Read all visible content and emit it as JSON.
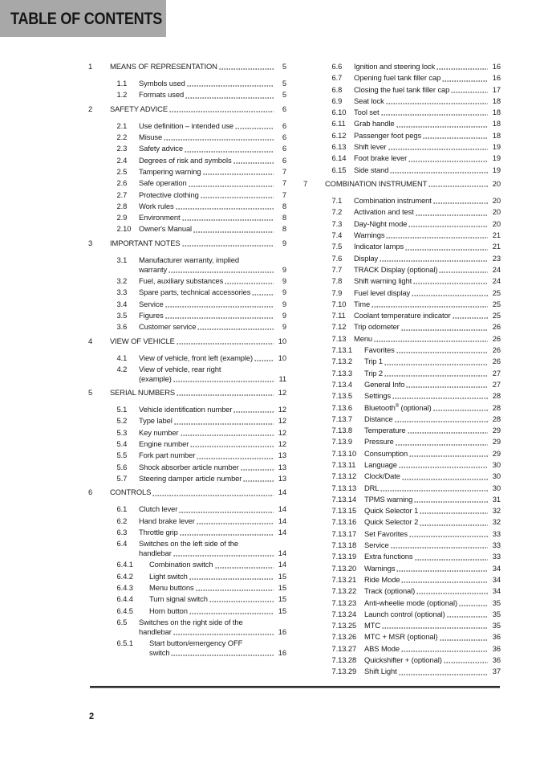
{
  "header": {
    "title": "TABLE OF CONTENTS"
  },
  "footer": {
    "page_number": "2"
  },
  "colors": {
    "header_bg": "#a8a8a8",
    "text": "#1b1b1b",
    "rule": "#2d2d2d"
  },
  "toc": {
    "left": [
      {
        "num": "1",
        "title": "MEANS OF REPRESENTATION",
        "page": "5",
        "level": 1
      },
      {
        "num": "1.1",
        "title": "Symbols used",
        "page": "5",
        "level": 2
      },
      {
        "num": "1.2",
        "title": "Formats used",
        "page": "5",
        "level": 2
      },
      {
        "num": "2",
        "title": "SAFETY ADVICE",
        "page": "6",
        "level": 1
      },
      {
        "num": "2.1",
        "title": "Use definition – intended use",
        "page": "6",
        "level": 2
      },
      {
        "num": "2.2",
        "title": "Misuse",
        "page": "6",
        "level": 2
      },
      {
        "num": "2.3",
        "title": "Safety advice",
        "page": "6",
        "level": 2
      },
      {
        "num": "2.4",
        "title": "Degrees of risk and symbols",
        "page": "6",
        "level": 2
      },
      {
        "num": "2.5",
        "title": "Tampering warning",
        "page": "7",
        "level": 2
      },
      {
        "num": "2.6",
        "title": "Safe operation",
        "page": "7",
        "level": 2
      },
      {
        "num": "2.7",
        "title": "Protective clothing",
        "page": "7",
        "level": 2
      },
      {
        "num": "2.8",
        "title": "Work rules",
        "page": "8",
        "level": 2
      },
      {
        "num": "2.9",
        "title": "Environment",
        "page": "8",
        "level": 2
      },
      {
        "num": "2.10",
        "title": "Owner's Manual",
        "page": "8",
        "level": 2
      },
      {
        "num": "3",
        "title": "IMPORTANT NOTES",
        "page": "9",
        "level": 1
      },
      {
        "num": "3.1",
        "title": "Manufacturer warranty, implied",
        "title2": "warranty",
        "page": "9",
        "level": 2
      },
      {
        "num": "3.2",
        "title": "Fuel, auxiliary substances",
        "page": "9",
        "level": 2
      },
      {
        "num": "3.3",
        "title": "Spare parts, technical accessories",
        "page": "9",
        "level": 2
      },
      {
        "num": "3.4",
        "title": "Service",
        "page": "9",
        "level": 2
      },
      {
        "num": "3.5",
        "title": "Figures",
        "page": "9",
        "level": 2
      },
      {
        "num": "3.6",
        "title": "Customer service",
        "page": "9",
        "level": 2
      },
      {
        "num": "4",
        "title": "VIEW OF VEHICLE",
        "page": "10",
        "level": 1
      },
      {
        "num": "4.1",
        "title": "View of vehicle, front left (example)",
        "page": "10",
        "level": 2
      },
      {
        "num": "4.2",
        "title": "View of vehicle, rear right",
        "title2": "(example)",
        "page": "11",
        "level": 2
      },
      {
        "num": "5",
        "title": "SERIAL NUMBERS",
        "page": "12",
        "level": 1
      },
      {
        "num": "5.1",
        "title": "Vehicle identification number",
        "page": "12",
        "level": 2
      },
      {
        "num": "5.2",
        "title": "Type label",
        "page": "12",
        "level": 2
      },
      {
        "num": "5.3",
        "title": "Key number",
        "page": "12",
        "level": 2
      },
      {
        "num": "5.4",
        "title": "Engine number",
        "page": "12",
        "level": 2
      },
      {
        "num": "5.5",
        "title": "Fork part number",
        "page": "13",
        "level": 2
      },
      {
        "num": "5.6",
        "title": "Shock absorber article number",
        "page": "13",
        "level": 2
      },
      {
        "num": "5.7",
        "title": "Steering damper article number",
        "page": "13",
        "level": 2
      },
      {
        "num": "6",
        "title": "CONTROLS",
        "page": "14",
        "level": 1
      },
      {
        "num": "6.1",
        "title": "Clutch lever",
        "page": "14",
        "level": 2
      },
      {
        "num": "6.2",
        "title": "Hand brake lever",
        "page": "14",
        "level": 2
      },
      {
        "num": "6.3",
        "title": "Throttle grip",
        "page": "14",
        "level": 2
      },
      {
        "num": "6.4",
        "title": "Switches on the left side of the",
        "title2": "handlebar",
        "page": "14",
        "level": 2
      },
      {
        "num": "6.4.1",
        "title": "Combination switch",
        "page": "14",
        "level": 3
      },
      {
        "num": "6.4.2",
        "title": "Light switch",
        "page": "15",
        "level": 3
      },
      {
        "num": "6.4.3",
        "title": "Menu buttons",
        "page": "15",
        "level": 3
      },
      {
        "num": "6.4.4",
        "title": "Turn signal switch",
        "page": "15",
        "level": 3
      },
      {
        "num": "6.4.5",
        "title": "Horn button",
        "page": "15",
        "level": 3
      },
      {
        "num": "6.5",
        "title": "Switches on the right side of the",
        "title2": "handlebar",
        "page": "16",
        "level": 2
      },
      {
        "num": "6.5.1",
        "title": "Start button/emergency OFF",
        "title2": "switch",
        "page": "16",
        "level": 3
      }
    ],
    "right": [
      {
        "num": "6.6",
        "title": "Ignition and steering lock",
        "page": "16",
        "level": 2
      },
      {
        "num": "6.7",
        "title": "Opening fuel tank filler cap",
        "page": "16",
        "level": 2
      },
      {
        "num": "6.8",
        "title": "Closing the fuel tank filler cap",
        "page": "17",
        "level": 2
      },
      {
        "num": "6.9",
        "title": "Seat lock",
        "page": "18",
        "level": 2
      },
      {
        "num": "6.10",
        "title": "Tool set",
        "page": "18",
        "level": 2
      },
      {
        "num": "6.11",
        "title": "Grab handle",
        "page": "18",
        "level": 2
      },
      {
        "num": "6.12",
        "title": "Passenger foot pegs",
        "page": "18",
        "level": 2
      },
      {
        "num": "6.13",
        "title": "Shift lever",
        "page": "19",
        "level": 2
      },
      {
        "num": "6.14",
        "title": "Foot brake lever",
        "page": "19",
        "level": 2
      },
      {
        "num": "6.15",
        "title": "Side stand",
        "page": "19",
        "level": 2
      },
      {
        "num": "7",
        "title": "COMBINATION INSTRUMENT",
        "page": "20",
        "level": 1
      },
      {
        "num": "7.1",
        "title": "Combination instrument",
        "page": "20",
        "level": 2
      },
      {
        "num": "7.2",
        "title": "Activation and test",
        "page": "20",
        "level": 2
      },
      {
        "num": "7.3",
        "title": "Day-Night mode",
        "page": "20",
        "level": 2
      },
      {
        "num": "7.4",
        "title": "Warnings",
        "page": "21",
        "level": 2
      },
      {
        "num": "7.5",
        "title": "Indicator lamps",
        "page": "21",
        "level": 2
      },
      {
        "num": "7.6",
        "title": "Display",
        "page": "23",
        "level": 2
      },
      {
        "num": "7.7",
        "title": "TRACK Display (optional)",
        "page": "24",
        "level": 2
      },
      {
        "num": "7.8",
        "title": "Shift warning light",
        "page": "24",
        "level": 2
      },
      {
        "num": "7.9",
        "title": "Fuel level display",
        "page": "25",
        "level": 2
      },
      {
        "num": "7.10",
        "title": "Time",
        "page": "25",
        "level": 2
      },
      {
        "num": "7.11",
        "title": "Coolant temperature indicator",
        "page": "25",
        "level": 2
      },
      {
        "num": "7.12",
        "title": "Trip odometer",
        "page": "26",
        "level": 2
      },
      {
        "num": "7.13",
        "title": "Menu",
        "page": "26",
        "level": 2
      },
      {
        "num": "7.13.1",
        "title": "Favorites",
        "page": "26",
        "level": 3
      },
      {
        "num": "7.13.2",
        "title": "Trip 1",
        "page": "26",
        "level": 3
      },
      {
        "num": "7.13.3",
        "title": "Trip 2",
        "page": "27",
        "level": 3
      },
      {
        "num": "7.13.4",
        "title": "General Info",
        "page": "27",
        "level": 3
      },
      {
        "num": "7.13.5",
        "title": "Settings",
        "page": "28",
        "level": 3
      },
      {
        "num": "7.13.6",
        "title": "Bluetooth® (optional)",
        "page": "28",
        "level": 3
      },
      {
        "num": "7.13.7",
        "title": "Distance",
        "page": "28",
        "level": 3
      },
      {
        "num": "7.13.8",
        "title": "Temperature",
        "page": "29",
        "level": 3
      },
      {
        "num": "7.13.9",
        "title": "Pressure",
        "page": "29",
        "level": 3
      },
      {
        "num": "7.13.10",
        "title": "Consumption",
        "page": "29",
        "level": 3
      },
      {
        "num": "7.13.11",
        "title": "Language",
        "page": "30",
        "level": 3
      },
      {
        "num": "7.13.12",
        "title": "Clock/Date",
        "page": "30",
        "level": 3
      },
      {
        "num": "7.13.13",
        "title": "DRL",
        "page": "30",
        "level": 3
      },
      {
        "num": "7.13.14",
        "title": "TPMS warning",
        "page": "31",
        "level": 3
      },
      {
        "num": "7.13.15",
        "title": "Quick Selector 1",
        "page": "32",
        "level": 3
      },
      {
        "num": "7.13.16",
        "title": "Quick Selector 2",
        "page": "32",
        "level": 3
      },
      {
        "num": "7.13.17",
        "title": "Set Favorites",
        "page": "33",
        "level": 3
      },
      {
        "num": "7.13.18",
        "title": "Service",
        "page": "33",
        "level": 3
      },
      {
        "num": "7.13.19",
        "title": "Extra functions",
        "page": "33",
        "level": 3
      },
      {
        "num": "7.13.20",
        "title": "Warnings",
        "page": "34",
        "level": 3
      },
      {
        "num": "7.13.21",
        "title": "Ride Mode",
        "page": "34",
        "level": 3
      },
      {
        "num": "7.13.22",
        "title": "Track (optional)",
        "page": "34",
        "level": 3
      },
      {
        "num": "7.13.23",
        "title": "Anti-wheelie mode (optional)",
        "page": "35",
        "level": 3
      },
      {
        "num": "7.13.24",
        "title": "Launch control (optional)",
        "page": "35",
        "level": 3
      },
      {
        "num": "7.13.25",
        "title": "MTC",
        "page": "35",
        "level": 3
      },
      {
        "num": "7.13.26",
        "title": "MTC + MSR (optional)",
        "page": "36",
        "level": 3
      },
      {
        "num": "7.13.27",
        "title": "ABS Mode",
        "page": "36",
        "level": 3
      },
      {
        "num": "7.13.28",
        "title": "Quickshifter + (optional)",
        "page": "36",
        "level": 3
      },
      {
        "num": "7.13.29",
        "title": "Shift Light",
        "page": "37",
        "level": 3
      }
    ]
  }
}
